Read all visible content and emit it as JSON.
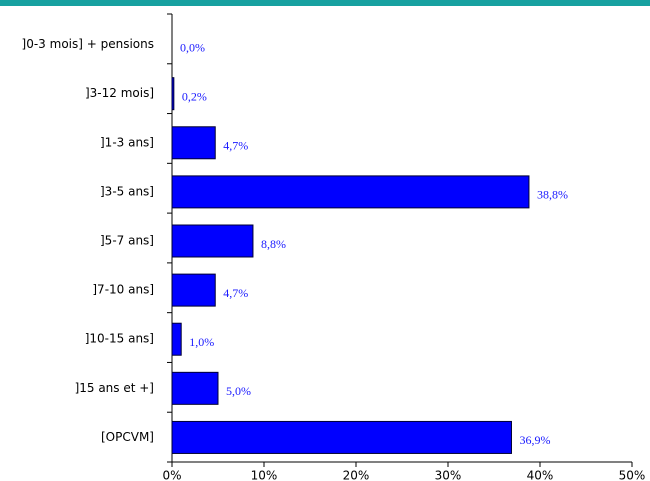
{
  "chart_data": {
    "type": "bar",
    "orientation": "horizontal",
    "categories": [
      "]0-3 mois] + pensions",
      "]3-12 mois]",
      "]1-3 ans]",
      "]3-5 ans]",
      "]5-7 ans]",
      "]7-10 ans]",
      "]10-15 ans]",
      "]15 ans et +]",
      "[OPCVM]"
    ],
    "values": [
      0.0,
      0.2,
      4.7,
      38.8,
      8.8,
      4.7,
      1.0,
      5.0,
      36.9
    ],
    "value_labels": [
      "0,0%",
      "0,2%",
      "4,7%",
      "38,8%",
      "8,8%",
      "4,7%",
      "1,0%",
      "5,0%",
      "36,9%"
    ],
    "color": "#0000ff",
    "xlim": [
      0,
      50
    ],
    "xticks": [
      {
        "value": 0,
        "label": "0%"
      },
      {
        "value": 10,
        "label": "10%"
      },
      {
        "value": 20,
        "label": "20%"
      },
      {
        "value": 30,
        "label": "30%"
      },
      {
        "value": 40,
        "label": "40%"
      },
      {
        "value": 50,
        "label": "50%"
      }
    ]
  }
}
